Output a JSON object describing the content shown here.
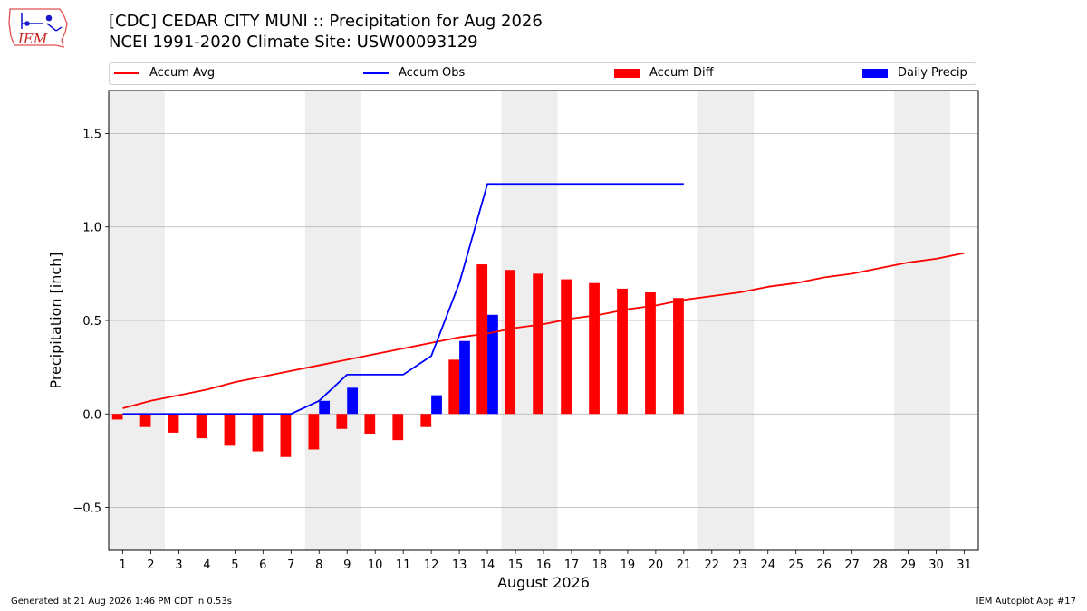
{
  "header": {
    "title_line1": "[CDC] CEDAR CITY MUNI :: Precipitation for Aug 2026",
    "title_line2": "NCEI 1991-2020 Climate Site: USW00093129",
    "logo_text": "IEM"
  },
  "footer": {
    "left": "Generated at 21 Aug 2026 1:46 PM CDT in 0.53s",
    "right": "IEM Autoplot App #17"
  },
  "colors": {
    "avg": "#ff0000",
    "obs": "#0000ff",
    "diff": "#ff0000",
    "daily": "#0000ff",
    "weekend_band": "#eeeeee",
    "grid": "#b0b0b0"
  },
  "chart_data": {
    "type": "bar",
    "title": "[CDC] CEDAR CITY MUNI :: Precipitation for Aug 2026",
    "xlabel": "August 2026",
    "ylabel": "Precipitation [inch]",
    "xlim": [
      0.5,
      31.5
    ],
    "ylim": [
      -0.73,
      1.73
    ],
    "yticks": [
      -0.5,
      0.0,
      0.5,
      1.0,
      1.5
    ],
    "ytick_labels": [
      "−0.5",
      "0.0",
      "0.5",
      "1.0",
      "1.5"
    ],
    "xticks": [
      1,
      2,
      3,
      4,
      5,
      6,
      7,
      8,
      9,
      10,
      11,
      12,
      13,
      14,
      15,
      16,
      17,
      18,
      19,
      20,
      21,
      22,
      23,
      24,
      25,
      26,
      27,
      28,
      29,
      30,
      31
    ],
    "grid": "horizontal",
    "legend_position": "top",
    "weekend_bands": [
      [
        0.5,
        2.5
      ],
      [
        7.5,
        9.5
      ],
      [
        14.5,
        16.5
      ],
      [
        21.5,
        23.5
      ],
      [
        28.5,
        30.5
      ]
    ],
    "legend": [
      "Accum Avg",
      "Accum Obs",
      "Accum Diff",
      "Daily Precip"
    ],
    "series": [
      {
        "name": "Accum Avg",
        "type": "line",
        "x": [
          1,
          2,
          3,
          4,
          5,
          6,
          7,
          8,
          9,
          10,
          11,
          12,
          13,
          14,
          15,
          16,
          17,
          18,
          19,
          20,
          21,
          22,
          23,
          24,
          25,
          26,
          27,
          28,
          29,
          30,
          31
        ],
        "values": [
          0.03,
          0.07,
          0.1,
          0.13,
          0.17,
          0.2,
          0.23,
          0.26,
          0.29,
          0.32,
          0.35,
          0.38,
          0.41,
          0.43,
          0.46,
          0.48,
          0.51,
          0.53,
          0.56,
          0.58,
          0.61,
          0.63,
          0.65,
          0.68,
          0.7,
          0.73,
          0.75,
          0.78,
          0.81,
          0.83,
          0.86
        ]
      },
      {
        "name": "Accum Obs",
        "type": "line",
        "x": [
          1,
          2,
          3,
          4,
          5,
          6,
          7,
          8,
          9,
          10,
          11,
          12,
          13,
          14,
          15,
          16,
          17,
          18,
          19,
          20,
          21
        ],
        "values": [
          0.0,
          0.0,
          0.0,
          0.0,
          0.0,
          0.0,
          0.0,
          0.07,
          0.21,
          0.21,
          0.21,
          0.31,
          0.7,
          1.23,
          1.23,
          1.23,
          1.23,
          1.23,
          1.23,
          1.23,
          1.23
        ]
      },
      {
        "name": "Accum Diff",
        "type": "bar",
        "x": [
          1,
          2,
          3,
          4,
          5,
          6,
          7,
          8,
          9,
          10,
          11,
          12,
          13,
          14,
          15,
          16,
          17,
          18,
          19,
          20,
          21
        ],
        "values": [
          -0.03,
          -0.07,
          -0.1,
          -0.13,
          -0.17,
          -0.2,
          -0.23,
          -0.19,
          -0.08,
          -0.11,
          -0.14,
          -0.07,
          0.29,
          0.8,
          0.77,
          0.75,
          0.72,
          0.7,
          0.67,
          0.65,
          0.62
        ]
      },
      {
        "name": "Daily Precip",
        "type": "bar",
        "x": [
          1,
          2,
          3,
          4,
          5,
          6,
          7,
          8,
          9,
          10,
          11,
          12,
          13,
          14,
          15,
          16,
          17,
          18,
          19,
          20,
          21
        ],
        "values": [
          0.0,
          0.0,
          0.0,
          0.0,
          0.0,
          0.0,
          0.0,
          0.07,
          0.14,
          0.0,
          0.0,
          0.1,
          0.39,
          0.53,
          0.0,
          0.0,
          0.0,
          0.0,
          0.0,
          0.0,
          0.0
        ]
      }
    ]
  }
}
